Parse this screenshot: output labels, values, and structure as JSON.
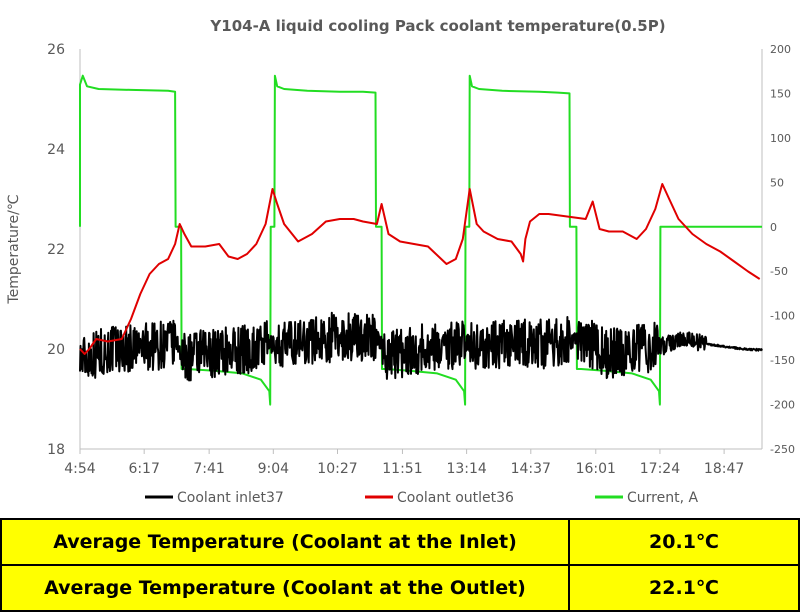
{
  "chart_data": {
    "type": "line",
    "title": "Y104-A liquid cooling Pack coolant temperature(0.5P)",
    "ylabel": "Temperature/℃",
    "y2label": "",
    "xlabel": "",
    "ylim": [
      18,
      26
    ],
    "y_ticks": [
      "18",
      "20",
      "22",
      "24",
      "26"
    ],
    "y2lim": [
      -250,
      200
    ],
    "y2_ticks": [
      "-250",
      "-200",
      "-150",
      "-100",
      "-50",
      "0",
      "50",
      "100",
      "150",
      "200"
    ],
    "x_ticks": [
      "4:54",
      "6:17",
      "7:41",
      "9:04",
      "10:27",
      "11:51",
      "13:14",
      "14:37",
      "16:01",
      "17:24",
      "18:47"
    ],
    "x_tick_hours": [
      4.9,
      6.2833,
      7.6833,
      9.0667,
      10.45,
      11.85,
      13.2333,
      14.6167,
      16.0167,
      17.4,
      18.7833
    ],
    "xlim_hours": [
      4.9,
      19.6
    ],
    "grid": false,
    "legend_position": "bottom",
    "colors": {
      "inlet": "#000000",
      "outlet": "#e00000",
      "current": "#22dd22",
      "axis": "#bfbfbf",
      "text": "#595959"
    },
    "series": [
      {
        "name": "Coolant inlet37",
        "axis": "left",
        "color": "#000000",
        "x_hours": [
          4.9,
          5.2,
          5.6,
          6.0,
          6.4,
          6.8,
          7.0,
          7.12,
          7.3,
          7.6,
          8.0,
          8.5,
          8.9,
          9.05,
          9.2,
          9.6,
          10.0,
          10.5,
          11.0,
          11.35,
          11.5,
          11.8,
          12.2,
          12.6,
          13.0,
          13.2,
          13.4,
          13.8,
          14.2,
          14.6,
          15.0,
          15.5,
          15.8,
          16.0,
          16.2,
          16.6,
          17.0,
          17.4,
          17.6,
          17.8,
          18.0,
          18.4,
          18.8,
          19.2,
          19.6
        ],
        "values": [
          19.8,
          19.9,
          20.0,
          20.0,
          20.05,
          20.1,
          20.1,
          19.8,
          19.85,
          19.9,
          19.95,
          20.0,
          20.05,
          20.1,
          20.05,
          20.15,
          20.2,
          20.25,
          20.25,
          20.2,
          19.9,
          19.9,
          20.0,
          20.05,
          20.1,
          20.15,
          20.05,
          20.05,
          20.1,
          20.1,
          20.1,
          20.15,
          20.1,
          20.1,
          19.9,
          19.95,
          20.0,
          20.05,
          20.1,
          20.2,
          20.2,
          20.1,
          20.05,
          20.0,
          19.98
        ]
      },
      {
        "name": "Coolant outlet36",
        "axis": "left",
        "color": "#e00000",
        "x_hours": [
          4.9,
          5.0,
          5.1,
          5.25,
          5.5,
          5.8,
          6.0,
          6.2,
          6.4,
          6.6,
          6.8,
          6.95,
          7.05,
          7.15,
          7.3,
          7.6,
          7.9,
          8.1,
          8.3,
          8.5,
          8.7,
          8.9,
          9.05,
          9.15,
          9.3,
          9.6,
          9.9,
          10.2,
          10.5,
          10.8,
          11.0,
          11.3,
          11.4,
          11.55,
          11.8,
          12.1,
          12.4,
          12.8,
          13.0,
          13.15,
          13.3,
          13.45,
          13.6,
          13.9,
          14.2,
          14.4,
          14.45,
          14.5,
          14.6,
          14.8,
          15.0,
          15.4,
          15.8,
          15.95,
          16.1,
          16.3,
          16.6,
          16.9,
          17.1,
          17.3,
          17.45,
          17.6,
          17.8,
          18.1,
          18.4,
          18.7,
          19.0,
          19.3,
          19.55
        ],
        "values": [
          20.0,
          19.9,
          20.0,
          20.2,
          20.15,
          20.2,
          20.6,
          21.1,
          21.5,
          21.7,
          21.8,
          22.1,
          22.5,
          22.3,
          22.05,
          22.05,
          22.1,
          21.85,
          21.8,
          21.9,
          22.1,
          22.5,
          23.2,
          22.9,
          22.5,
          22.15,
          22.3,
          22.55,
          22.6,
          22.6,
          22.55,
          22.5,
          22.9,
          22.3,
          22.15,
          22.1,
          22.05,
          21.7,
          21.8,
          22.2,
          23.2,
          22.5,
          22.35,
          22.2,
          22.15,
          21.9,
          21.75,
          22.2,
          22.55,
          22.7,
          22.7,
          22.65,
          22.6,
          22.95,
          22.4,
          22.35,
          22.35,
          22.2,
          22.4,
          22.8,
          23.3,
          23.0,
          22.6,
          22.3,
          22.1,
          21.95,
          21.75,
          21.55,
          21.4
        ]
      },
      {
        "name": "Current, A",
        "axis": "right",
        "color": "#22dd22",
        "x_hours": [
          4.9,
          4.9,
          4.96,
          5.05,
          5.3,
          6.0,
          6.8,
          6.95,
          6.96,
          7.08,
          7.09,
          7.2,
          7.8,
          8.4,
          8.8,
          8.98,
          9.0,
          9.01,
          9.09,
          9.1,
          9.15,
          9.3,
          9.8,
          10.5,
          11.0,
          11.27,
          11.28,
          11.4,
          11.41,
          11.5,
          12.0,
          12.6,
          13.0,
          13.18,
          13.2,
          13.21,
          13.29,
          13.3,
          13.35,
          13.5,
          14.0,
          14.8,
          15.2,
          15.45,
          15.46,
          15.6,
          15.61,
          15.7,
          16.2,
          16.8,
          17.2,
          17.38,
          17.4,
          17.41,
          17.5,
          19.6
        ],
        "values": [
          0,
          160,
          170,
          158,
          155,
          154,
          153,
          152,
          0,
          0,
          -160,
          -160,
          -162,
          -165,
          -172,
          -185,
          -200,
          0,
          0,
          170,
          158,
          155,
          153,
          152,
          152,
          151,
          0,
          0,
          -160,
          -160,
          -162,
          -165,
          -172,
          -185,
          -200,
          0,
          0,
          170,
          158,
          155,
          153,
          152,
          151,
          150,
          0,
          0,
          -160,
          -160,
          -162,
          -165,
          -172,
          -185,
          -200,
          0,
          0,
          0
        ]
      }
    ]
  },
  "summary": {
    "rows": [
      {
        "label": "Average Temperature (Coolant at the Inlet)",
        "value": "20.1℃"
      },
      {
        "label": "Average Temperature (Coolant at the Outlet)",
        "value": "22.1℃"
      }
    ]
  }
}
